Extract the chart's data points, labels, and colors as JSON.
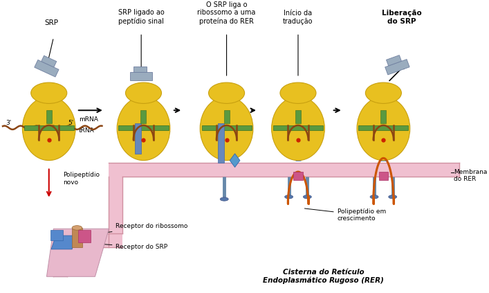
{
  "background_color": "#ffffff",
  "labels": {
    "srp": "SRP",
    "srp_ligado": "SRP ligado ao\npeptídio sinal",
    "srp_liga": "O SRP liga o\nribossomo a uma\nproteína do RER",
    "inicio": "Início da\ntradução",
    "liberacao": "Liberação\ndo SRP",
    "mrna": "mRNA",
    "trna": "tRNA",
    "polipeptideo_novo": "Polipeptídio\nnovo",
    "receptor_ribossomo": "Receptor do ribossomo",
    "receptor_srp": "Receptor do SRP",
    "polipeptideo_crescimento": "Polipeptídio em\ncrescimento",
    "membrana_rer": "Membrana\ndo RER",
    "cisterna": "Cisterna do Retículo\nEndoplasmático Rugoso (RER)",
    "tres_prime": "3'",
    "cinco_prime": "5'"
  },
  "colors": {
    "ribosome": "#e8c020",
    "ribosome_edge": "#c8a010",
    "mrna_strand": "#8B4513",
    "srp_body": "#9aacbe",
    "membrane_color": "#f0c0d0",
    "membrane_edge": "#d090a0",
    "green_tRNA": "#5a9940",
    "blue_connector": "#6688bb",
    "blue_diamond": "#5599cc",
    "polypeptide": "#cc5500",
    "red_arrow": "#cc0000",
    "receptor_pink": "#cc5588",
    "receptor_blue": "#5588cc",
    "receptor_tan": "#c08855",
    "pillar_color": "#6688aa",
    "pillar_foot": "#5577aa",
    "pink_fold": "#f0b8c8",
    "srp_plug": "#7799bb"
  },
  "figsize": [
    7.07,
    4.23
  ],
  "dpi": 100
}
